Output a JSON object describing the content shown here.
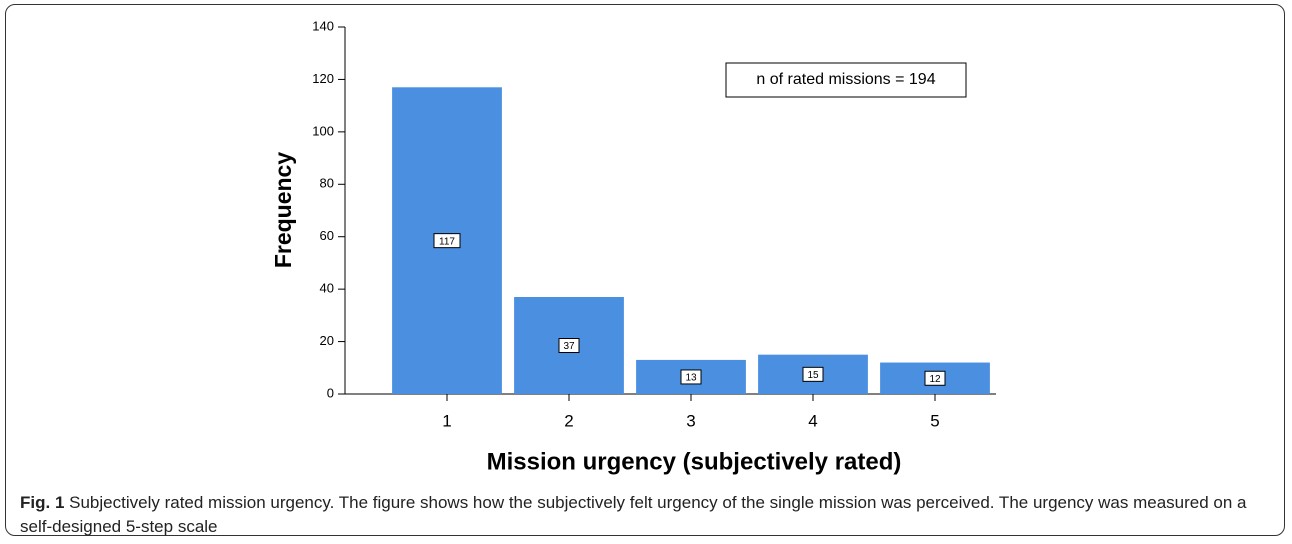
{
  "chart_data": {
    "type": "bar",
    "categories": [
      "1",
      "2",
      "3",
      "4",
      "5"
    ],
    "values": [
      117,
      37,
      13,
      15,
      12
    ],
    "color": "#4a8fe0",
    "ylim": [
      0,
      140
    ],
    "yticks": [
      0,
      20,
      40,
      60,
      80,
      100,
      120,
      140
    ],
    "grid": false,
    "xlabel": "Mission urgency (subjectively rated)",
    "ylabel": "Frequency",
    "annotation": "n of rated missions = 194"
  },
  "caption": {
    "label": "Fig. 1",
    "text": "Subjectively rated mission urgency. The figure shows how the subjectively felt urgency of the single mission was perceived. The urgency was measured on a self-designed 5-step scale"
  }
}
